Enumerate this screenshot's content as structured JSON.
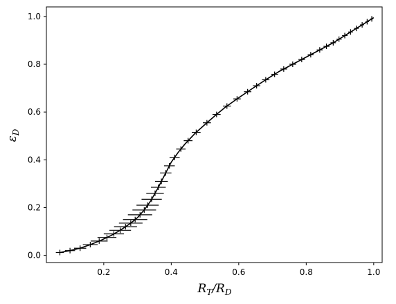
{
  "chart_data": {
    "type": "line",
    "title": "",
    "xlabel": "R_T/R_D",
    "ylabel": "ε_D",
    "xlim": [
      0.03,
      1.025
    ],
    "ylim": [
      -0.03,
      1.04
    ],
    "xticks": [
      0.2,
      0.4,
      0.6,
      0.8,
      1.0
    ],
    "yticks": [
      0.0,
      0.2,
      0.4,
      0.6,
      0.8,
      1.0
    ],
    "xtick_labels": [
      "0.2",
      "0.4",
      "0.6",
      "0.8",
      "1.0"
    ],
    "ytick_labels": [
      "0.0",
      "0.2",
      "0.4",
      "0.6",
      "0.8",
      "1.0"
    ],
    "grid": false,
    "legend": "none",
    "line_color": "#000000",
    "series": [
      {
        "x": [
          0.07,
          0.1,
          0.13,
          0.16,
          0.19,
          0.22,
          0.25,
          0.28,
          0.3,
          0.32,
          0.34,
          0.36,
          0.38,
          0.4,
          0.42,
          0.44,
          0.47,
          0.5,
          0.53,
          0.56,
          0.6,
          0.64,
          0.68,
          0.72,
          0.76,
          0.8,
          0.84,
          0.88,
          0.92,
          0.96,
          1.0
        ],
        "y": [
          0.012,
          0.02,
          0.03,
          0.045,
          0.062,
          0.082,
          0.106,
          0.135,
          0.158,
          0.19,
          0.23,
          0.28,
          0.335,
          0.39,
          0.43,
          0.465,
          0.51,
          0.548,
          0.585,
          0.62,
          0.66,
          0.698,
          0.735,
          0.77,
          0.8,
          0.83,
          0.86,
          0.89,
          0.925,
          0.96,
          0.995
        ]
      }
    ],
    "error_bars": {
      "y": [
        0.012,
        0.02,
        0.03,
        0.045,
        0.06,
        0.075,
        0.09,
        0.105,
        0.12,
        0.135,
        0.15,
        0.17,
        0.19,
        0.21,
        0.235,
        0.26,
        0.285,
        0.31,
        0.345,
        0.375,
        0.41,
        0.445,
        0.48,
        0.515,
        0.555,
        0.59,
        0.625,
        0.655,
        0.685,
        0.71,
        0.735,
        0.758,
        0.78,
        0.8,
        0.82,
        0.84,
        0.86,
        0.875,
        0.89,
        0.905,
        0.92,
        0.935,
        0.95,
        0.965,
        0.978,
        0.99
      ],
      "xerr": [
        0.012,
        0.015,
        0.018,
        0.022,
        0.025,
        0.028,
        0.03,
        0.032,
        0.034,
        0.035,
        0.036,
        0.036,
        0.035,
        0.033,
        0.03,
        0.026,
        0.022,
        0.019,
        0.017,
        0.016,
        0.015,
        0.014,
        0.013,
        0.013,
        0.012,
        0.012,
        0.012,
        0.011,
        0.011,
        0.011,
        0.011,
        0.01,
        0.01,
        0.01,
        0.01,
        0.009,
        0.009,
        0.009,
        0.008,
        0.008,
        0.008,
        0.007,
        0.007,
        0.006,
        0.005,
        0.004
      ]
    }
  }
}
